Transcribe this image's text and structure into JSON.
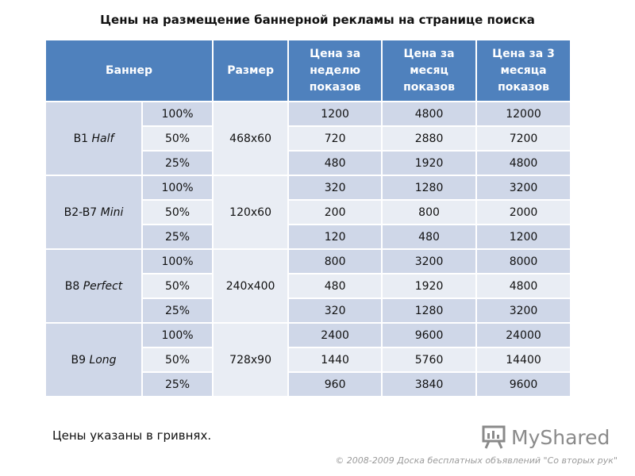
{
  "title": "Цены на размещение баннерной рекламы на странице поиска",
  "table": {
    "headers": {
      "banner": "Баннер",
      "size": "Размер",
      "week": "Цена за неделю показов",
      "month": "Цена за месяц показов",
      "three_months": "Цена за 3 месяца показов"
    },
    "groups": [
      {
        "banner_code": "B1",
        "banner_name": "Half",
        "size": "468x60",
        "rows": [
          {
            "pct": "100%",
            "week": "1200",
            "month": "4800",
            "three": "12000"
          },
          {
            "pct": "50%",
            "week": "720",
            "month": "2880",
            "three": "7200"
          },
          {
            "pct": "25%",
            "week": "480",
            "month": "1920",
            "three": "4800"
          }
        ]
      },
      {
        "banner_code": "B2-B7",
        "banner_name": "Mini",
        "size": "120x60",
        "rows": [
          {
            "pct": "100%",
            "week": "320",
            "month": "1280",
            "three": "3200"
          },
          {
            "pct": "50%",
            "week": "200",
            "month": "800",
            "three": "2000"
          },
          {
            "pct": "25%",
            "week": "120",
            "month": "480",
            "three": "1200"
          }
        ]
      },
      {
        "banner_code": "B8",
        "banner_name": "Perfect",
        "size": "240x400",
        "rows": [
          {
            "pct": "100%",
            "week": "800",
            "month": "3200",
            "three": "8000"
          },
          {
            "pct": "50%",
            "week": "480",
            "month": "1920",
            "three": "4800"
          },
          {
            "pct": "25%",
            "week": "320",
            "month": "1280",
            "three": "3200"
          }
        ]
      },
      {
        "banner_code": "B9",
        "banner_name": "Long",
        "size": "728x90",
        "rows": [
          {
            "pct": "100%",
            "week": "2400",
            "month": "9600",
            "three": "24000"
          },
          {
            "pct": "50%",
            "week": "1440",
            "month": "5760",
            "three": "14400"
          },
          {
            "pct": "25%",
            "week": "960",
            "month": "3840",
            "three": "9600"
          }
        ]
      }
    ]
  },
  "note": "Цены указаны в гривнях.",
  "logo": {
    "text": "MyShared",
    "icon": "presentation-board-icon"
  },
  "copyright": "© 2008-2009 Доска бесплатных объявлений \"Со вторых рук\"",
  "colors": {
    "header": "#4f81bd",
    "row_dark": "#cfd7e8",
    "row_light": "#e9edf4"
  }
}
